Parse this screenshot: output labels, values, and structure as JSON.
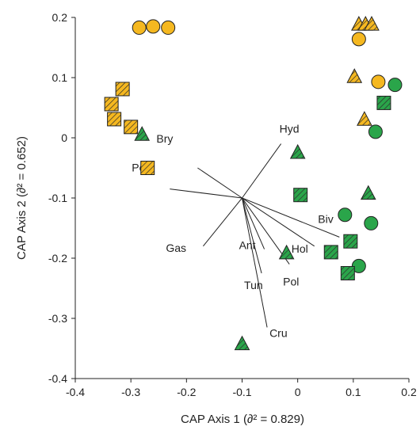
{
  "chart_data": {
    "type": "scatter",
    "title": "",
    "xlabel": "CAP Axis 1 (∂² = 0.829)",
    "ylabel": "CAP Axis 2 (∂² = 0.652)",
    "xlim": [
      -0.4,
      0.2
    ],
    "ylim": [
      -0.4,
      0.2
    ],
    "xticks": [
      "-0.4",
      "-0.3",
      "-0.2",
      "-0.1",
      "0",
      "0.1",
      "0.2"
    ],
    "yticks": [
      "0.2",
      "0.1",
      "0",
      "-0.1",
      "-0.2",
      "-0.3",
      "-0.4"
    ],
    "grid": false,
    "colors": {
      "yellow": "#f5b820",
      "green": "#2aa54a",
      "stroke": "#222222"
    },
    "series": [
      {
        "marker": "circle",
        "fill": "yellow",
        "hatched": false,
        "points": [
          [
            -0.285,
            0.183
          ],
          [
            -0.26,
            0.185
          ],
          [
            -0.233,
            0.183
          ],
          [
            0.11,
            0.164
          ],
          [
            0.145,
            0.093
          ]
        ]
      },
      {
        "marker": "triangle",
        "fill": "yellow",
        "hatched": true,
        "points": [
          [
            0.11,
            0.188
          ],
          [
            0.122,
            0.188
          ],
          [
            0.133,
            0.188
          ],
          [
            0.102,
            0.101
          ],
          [
            0.12,
            0.03
          ]
        ]
      },
      {
        "marker": "square",
        "fill": "yellow",
        "hatched": true,
        "points": [
          [
            -0.315,
            0.081
          ],
          [
            -0.335,
            0.056
          ],
          [
            -0.33,
            0.031
          ],
          [
            -0.3,
            0.018
          ],
          [
            -0.27,
            -0.05
          ]
        ]
      },
      {
        "marker": "circle",
        "fill": "green",
        "hatched": false,
        "points": [
          [
            0.175,
            0.088
          ],
          [
            0.14,
            0.01
          ],
          [
            0.085,
            -0.128
          ],
          [
            0.132,
            -0.142
          ],
          [
            0.11,
            -0.213
          ]
        ]
      },
      {
        "marker": "triangle",
        "fill": "green",
        "hatched": true,
        "points": [
          [
            -0.28,
            0.005
          ],
          [
            0.0,
            -0.025
          ],
          [
            0.127,
            -0.093
          ],
          [
            -0.02,
            -0.192
          ],
          [
            -0.1,
            -0.343
          ]
        ]
      },
      {
        "marker": "square",
        "fill": "green",
        "hatched": true,
        "points": [
          [
            0.155,
            0.058
          ],
          [
            0.005,
            -0.095
          ],
          [
            0.06,
            -0.19
          ],
          [
            0.095,
            -0.172
          ],
          [
            0.09,
            -0.225
          ]
        ]
      }
    ],
    "vectors": {
      "origin": [
        -0.1,
        -0.1
      ],
      "items": [
        {
          "label": "Hyd",
          "tip": [
            -0.03,
            -0.01
          ]
        },
        {
          "label": "Bry",
          "tip": [
            -0.18,
            -0.05
          ]
        },
        {
          "label": "Por",
          "tip": [
            -0.23,
            -0.085
          ]
        },
        {
          "label": "Gas",
          "tip": [
            -0.17,
            -0.18
          ]
        },
        {
          "label": "Ant",
          "tip": [
            -0.06,
            -0.185
          ]
        },
        {
          "label": "Tun",
          "tip": [
            -0.065,
            -0.225
          ]
        },
        {
          "label": "Pol",
          "tip": [
            -0.015,
            -0.21
          ]
        },
        {
          "label": "Hol",
          "tip": [
            0.03,
            -0.18
          ]
        },
        {
          "label": "Biv",
          "tip": [
            0.075,
            -0.165
          ]
        },
        {
          "label": "Cru",
          "tip": [
            -0.055,
            -0.315
          ]
        }
      ]
    }
  }
}
